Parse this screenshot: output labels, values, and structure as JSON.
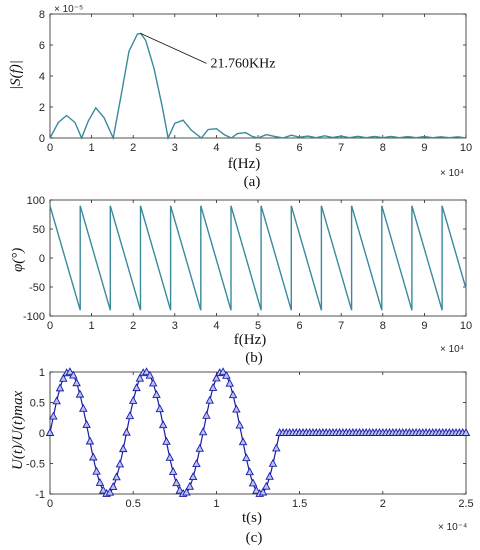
{
  "chart_data": [
    {
      "type": "line",
      "id": "a",
      "ylabel": "|S(f)|",
      "xlabel": "f(Hz)",
      "caption": "(a)",
      "x_exponent_label": "× 10⁴",
      "y_exponent_label": "× 10⁻⁵",
      "xlim": [
        0,
        10
      ],
      "ylim": [
        0,
        8
      ],
      "xticks": [
        0,
        1,
        2,
        3,
        4,
        5,
        6,
        7,
        8,
        9,
        10
      ],
      "yticks": [
        0,
        2,
        4,
        6,
        8
      ],
      "series": [
        {
          "color": "#3a8a9c",
          "x": [
            0,
            0.2,
            0.4,
            0.6,
            0.76,
            0.92,
            1.1,
            1.3,
            1.52,
            1.7,
            1.9,
            2.1,
            2.18,
            2.3,
            2.5,
            2.7,
            2.84,
            3.0,
            3.2,
            3.4,
            3.64,
            3.8,
            4.0,
            4.2,
            4.36,
            4.5,
            4.7,
            4.86,
            5.0,
            5.2,
            5.4,
            5.6,
            5.8,
            6.0,
            6.2,
            6.4,
            6.6,
            6.8,
            7.0,
            7.2,
            7.4,
            7.6,
            7.8,
            8.0,
            8.2,
            8.4,
            8.6,
            8.8,
            9.0,
            9.2,
            9.4,
            9.6,
            9.8,
            10.0
          ],
          "y": [
            0,
            1.0,
            1.45,
            1.0,
            0,
            1.1,
            1.95,
            1.3,
            0,
            2.6,
            5.6,
            6.7,
            6.75,
            6.3,
            4.5,
            2.0,
            0,
            0.95,
            1.15,
            0.5,
            0,
            0.55,
            0.6,
            0.2,
            0,
            0.28,
            0.35,
            0.1,
            0,
            0.22,
            0.1,
            0,
            0.18,
            0.05,
            0.12,
            0.02,
            0.14,
            0.03,
            0.12,
            0.02,
            0.11,
            0.02,
            0.1,
            0.02,
            0.1,
            0.02,
            0.09,
            0.02,
            0.09,
            0.02,
            0.08,
            0.02,
            0.08,
            0
          ]
        }
      ],
      "annotations": [
        {
          "text": "21.760KHz",
          "x": 2.176,
          "y": 6.75
        }
      ]
    },
    {
      "type": "line",
      "id": "b",
      "ylabel": "φ(°)",
      "xlabel": "f(Hz)",
      "caption": "(b)",
      "x_exponent_label": "× 10⁴",
      "xlim": [
        0,
        10
      ],
      "ylim": [
        -100,
        100
      ],
      "xticks": [
        0,
        1,
        2,
        3,
        4,
        5,
        6,
        7,
        8,
        9,
        10
      ],
      "yticks": [
        -100,
        -50,
        0,
        50,
        100
      ],
      "series": [
        {
          "color": "#3a8a9c",
          "sawtooth_period": 0.725,
          "sawtooth_range": [
            -90,
            90
          ],
          "x_start": 0,
          "x_end": 10
        }
      ]
    },
    {
      "type": "line",
      "id": "c",
      "ylabel": "U(t)/U(t)max",
      "xlabel": "t(s)",
      "caption": "(c)",
      "x_exponent_label": "× 10⁻⁴",
      "xlim": [
        0,
        2.5
      ],
      "ylim": [
        -1,
        1
      ],
      "xticks": [
        0,
        0.5,
        1,
        1.5,
        2,
        2.5
      ],
      "xtick_labels": [
        "0",
        "0.5",
        "1",
        "1.5",
        "2",
        "2.5"
      ],
      "yticks": [
        -1,
        -0.5,
        0,
        0.5,
        1
      ],
      "series": [
        {
          "color": "#1a1aa8",
          "marker": "triangle",
          "sine_frequency": 2.176,
          "sine_cycles": 3,
          "flat_start": 1.3787,
          "flat_end": 2.5,
          "flat_value": 0,
          "marker_step": 0.02
        }
      ]
    }
  ]
}
